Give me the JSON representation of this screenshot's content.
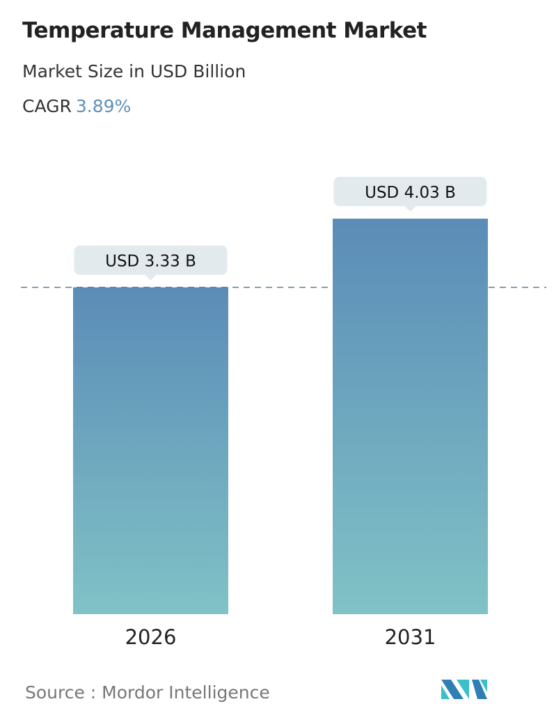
{
  "title": "Temperature Management Market",
  "subtitle": "Market Size in USD Billion",
  "cagr_label": "CAGR",
  "cagr_value": "3.89%",
  "source": "Source :  Mordor Intelligence",
  "logo_text": "Mordor Intelligence",
  "colors": {
    "bar_top": "#5b8cb7",
    "bar_bottom": "#80c2c6",
    "label_bg": "#e3eaee",
    "dash": "#5a7f99",
    "cagr": "#5f8fb8"
  },
  "chart_data": {
    "type": "bar",
    "categories": [
      "2026",
      "2031"
    ],
    "values": [
      3.33,
      4.03
    ],
    "data_labels": [
      "USD 3.33 B",
      "USD 4.03 B"
    ],
    "ylim": [
      0,
      4.03
    ],
    "grid": false,
    "reference_line": 3.33
  }
}
